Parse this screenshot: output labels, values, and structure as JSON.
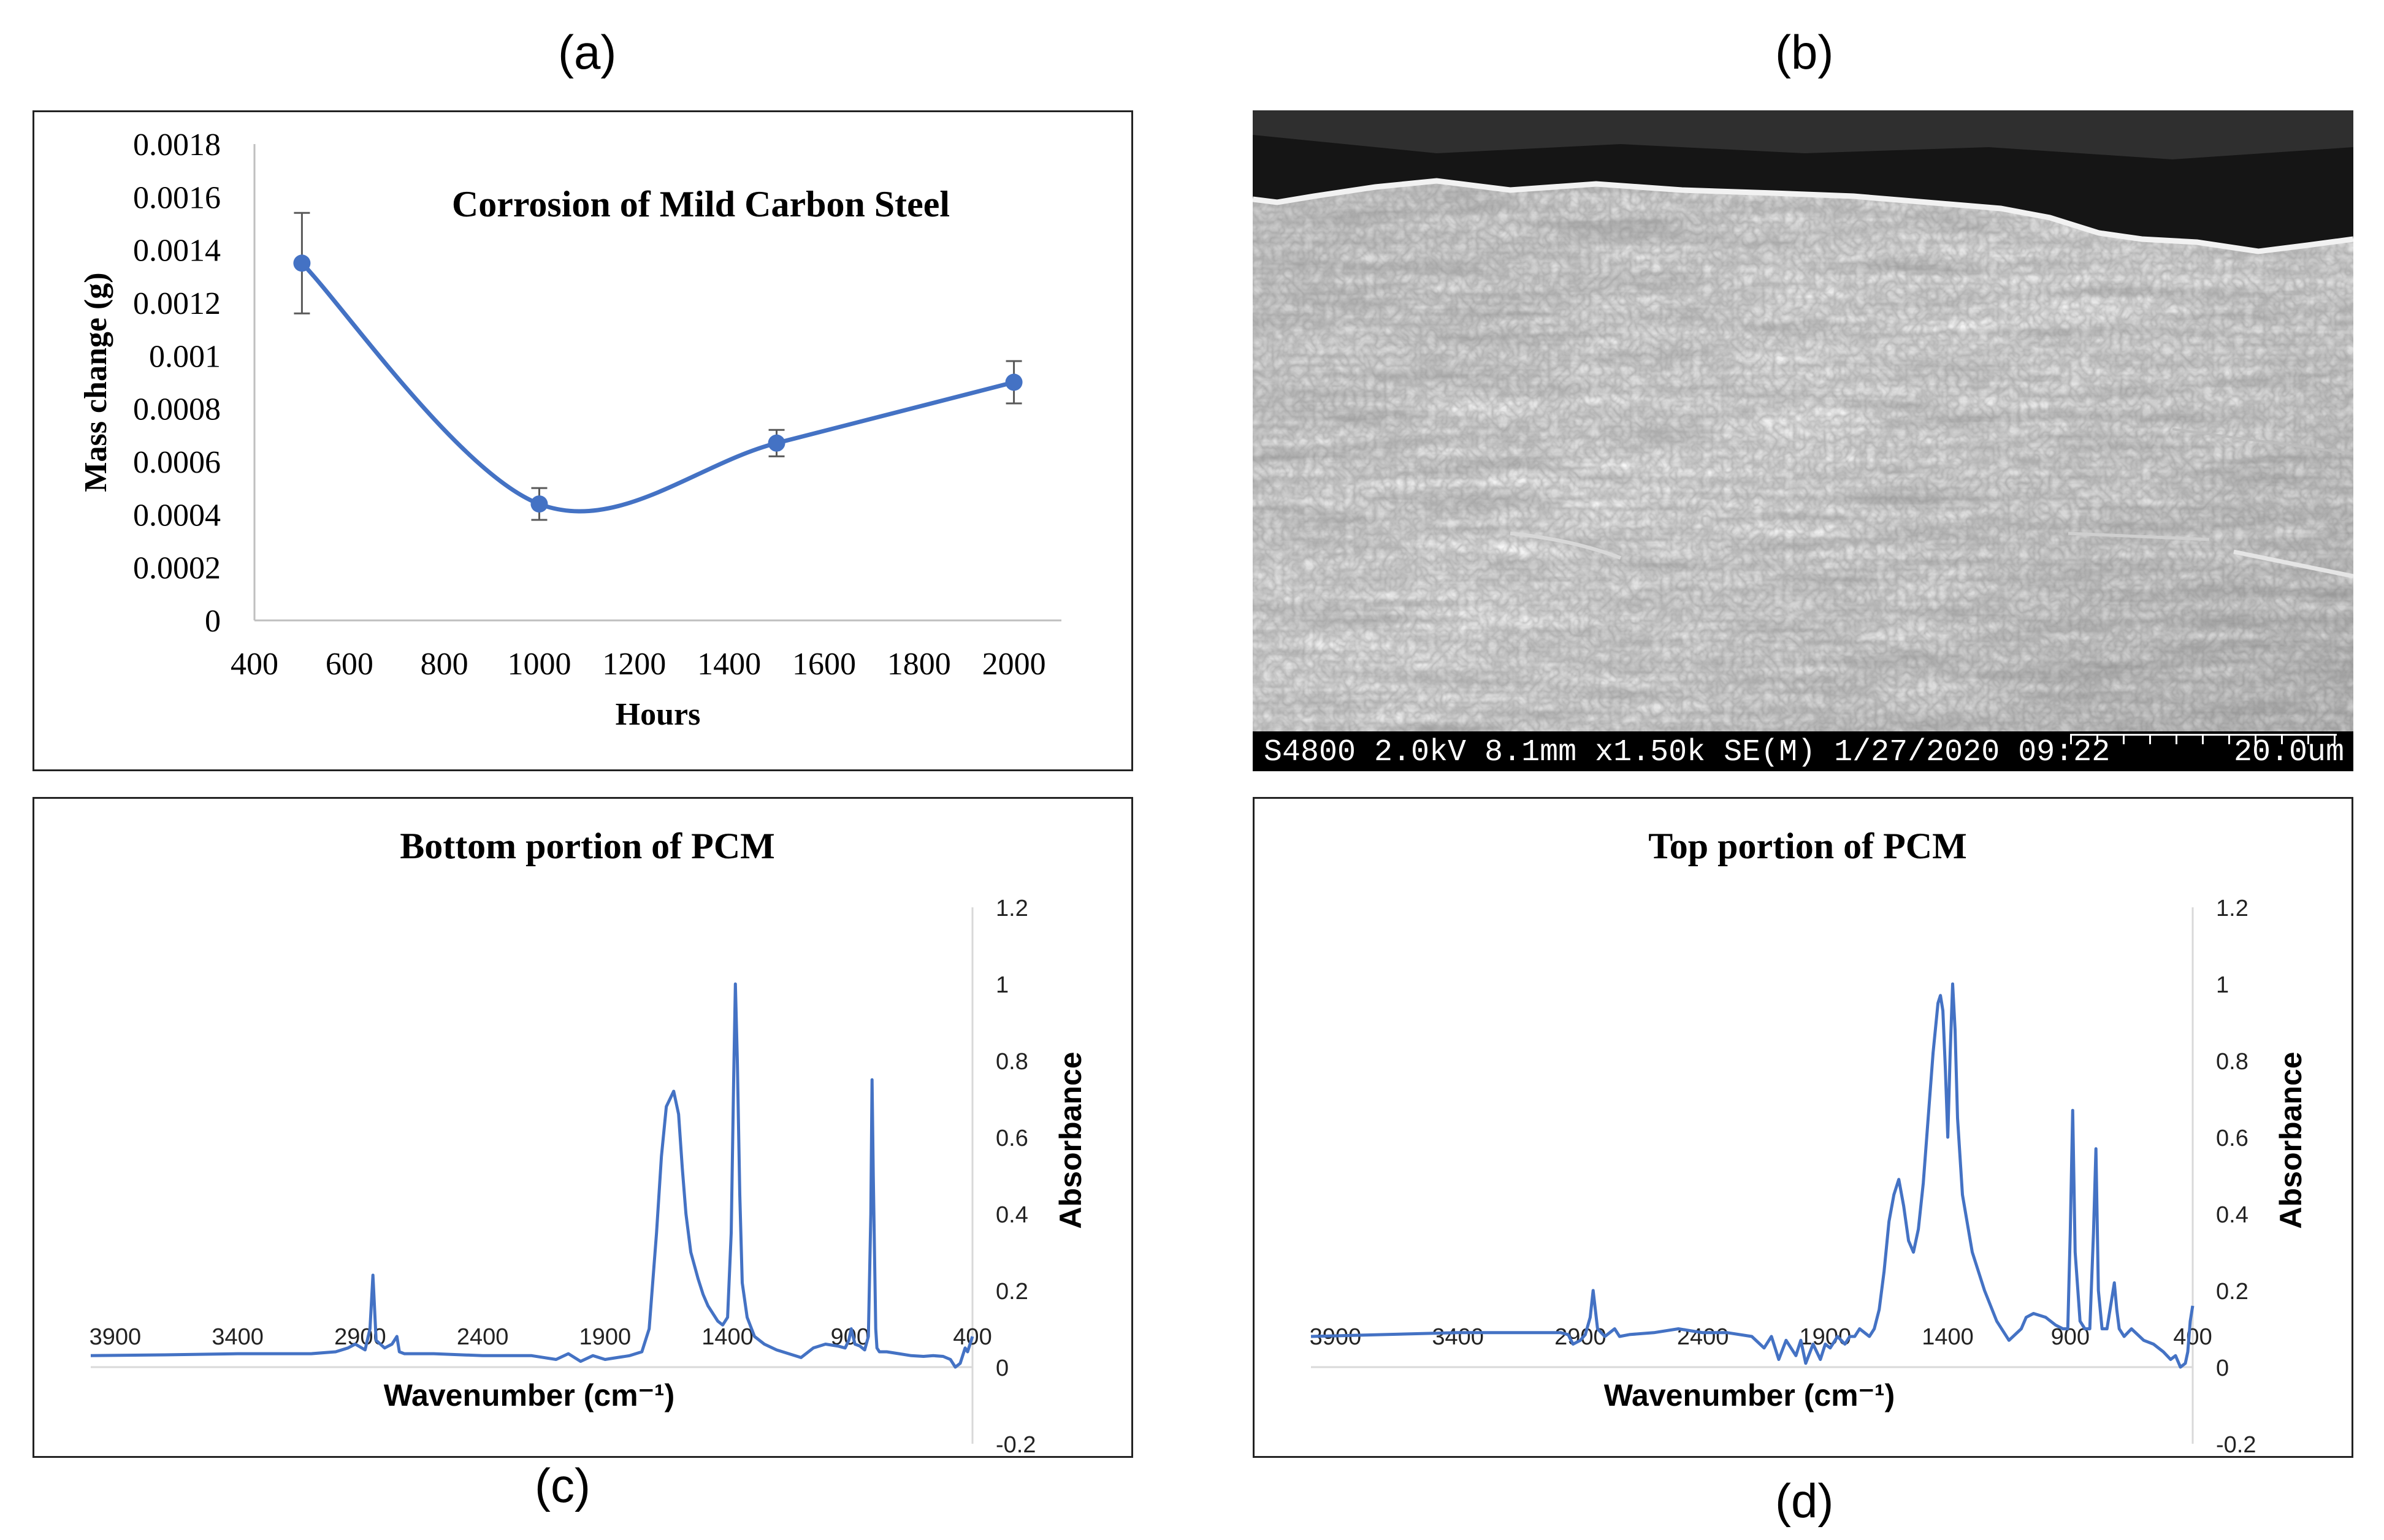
{
  "panel_labels": {
    "a": "(a)",
    "b": "(b)",
    "c": "(c)",
    "d": "(d)"
  },
  "sem": {
    "info": "S4800 2.0kV 8.1mm x1.50k SE(M) 1/27/2020 09:22",
    "scale": "20.0um"
  },
  "chart_data": [
    {
      "id": "a",
      "type": "line",
      "title": "Corrosion of Mild Carbon Steel",
      "xlabel": "Hours",
      "ylabel": "Mass change (g)",
      "x": [
        500,
        1000,
        1500,
        2000
      ],
      "y": [
        0.00135,
        0.00044,
        0.00067,
        0.0009
      ],
      "error": [
        0.00019,
        6e-05,
        5e-05,
        8e-05
      ],
      "xlim": [
        400,
        2100
      ],
      "ylim": [
        0,
        0.0018
      ],
      "xticks": [
        "400",
        "600",
        "800",
        "1000",
        "1200",
        "1400",
        "1600",
        "1800",
        "2000"
      ],
      "yticks": [
        "0",
        "0.0002",
        "0.0004",
        "0.0006",
        "0.0008",
        "0.001",
        "0.0012",
        "0.0014",
        "0.0016",
        "0.0018"
      ],
      "color": "#4472c4"
    },
    {
      "id": "c",
      "type": "line",
      "title": "Bottom portion of PCM",
      "xlabel": "Wavenumber (cm⁻¹)",
      "ylabel": "Absorbance",
      "xlim": [
        4000,
        400
      ],
      "ylim": [
        -0.2,
        1.2
      ],
      "xticks": [
        "3900",
        "3400",
        "2900",
        "2400",
        "1900",
        "1400",
        "900",
        "400"
      ],
      "yticks": [
        "-0.2",
        "0",
        "0.2",
        "0.4",
        "0.6",
        "0.8",
        "1",
        "1.2"
      ],
      "color": "#4472c4",
      "x": [
        4000,
        3700,
        3400,
        3100,
        3000,
        2950,
        2920,
        2880,
        2860,
        2848,
        2835,
        2800,
        2770,
        2750,
        2740,
        2720,
        2600,
        2400,
        2200,
        2100,
        2050,
        2000,
        1950,
        1900,
        1850,
        1800,
        1750,
        1720,
        1690,
        1670,
        1650,
        1620,
        1600,
        1585,
        1570,
        1550,
        1520,
        1500,
        1480,
        1460,
        1440,
        1420,
        1400,
        1385,
        1375,
        1368,
        1360,
        1350,
        1340,
        1320,
        1290,
        1250,
        1200,
        1150,
        1100,
        1050,
        1000,
        950,
        920,
        905,
        895,
        880,
        860,
        840,
        825,
        815,
        810,
        805,
        795,
        790,
        780,
        750,
        700,
        650,
        600,
        560,
        520,
        490,
        470,
        450,
        430,
        420,
        400
      ],
      "y": [
        0.03,
        0.032,
        0.035,
        0.035,
        0.04,
        0.05,
        0.06,
        0.045,
        0.1,
        0.24,
        0.07,
        0.05,
        0.06,
        0.08,
        0.04,
        0.035,
        0.035,
        0.03,
        0.03,
        0.02,
        0.035,
        0.015,
        0.03,
        0.02,
        0.025,
        0.03,
        0.04,
        0.1,
        0.35,
        0.55,
        0.68,
        0.72,
        0.66,
        0.52,
        0.4,
        0.3,
        0.23,
        0.19,
        0.16,
        0.14,
        0.12,
        0.11,
        0.13,
        0.35,
        0.75,
        1.0,
        0.8,
        0.45,
        0.22,
        0.13,
        0.08,
        0.06,
        0.045,
        0.035,
        0.025,
        0.05,
        0.06,
        0.055,
        0.05,
        0.07,
        0.1,
        0.06,
        0.055,
        0.045,
        0.08,
        0.4,
        0.75,
        0.5,
        0.1,
        0.05,
        0.04,
        0.04,
        0.035,
        0.03,
        0.028,
        0.03,
        0.028,
        0.02,
        0.0,
        0.01,
        0.05,
        0.04,
        0.08
      ]
    },
    {
      "id": "d",
      "type": "line",
      "title": "Top portion of PCM",
      "xlabel": "Wavenumber (cm⁻¹)",
      "ylabel": "Absorbance",
      "xlim": [
        4000,
        400
      ],
      "ylim": [
        -0.2,
        1.2
      ],
      "xticks": [
        "3900",
        "3400",
        "2900",
        "2400",
        "1900",
        "1400",
        "900",
        "400"
      ],
      "yticks": [
        "-0.2",
        "0",
        "0.2",
        "0.4",
        "0.6",
        "0.8",
        "1",
        "1.2"
      ],
      "color": "#4472c4",
      "x": [
        4000,
        3700,
        3400,
        3200,
        3050,
        2980,
        2950,
        2930,
        2900,
        2880,
        2860,
        2848,
        2830,
        2800,
        2760,
        2740,
        2700,
        2600,
        2500,
        2400,
        2300,
        2200,
        2150,
        2120,
        2090,
        2060,
        2020,
        2000,
        1980,
        1950,
        1920,
        1900,
        1880,
        1850,
        1820,
        1800,
        1780,
        1760,
        1720,
        1700,
        1680,
        1660,
        1640,
        1620,
        1600,
        1580,
        1560,
        1540,
        1520,
        1500,
        1480,
        1460,
        1440,
        1430,
        1420,
        1410,
        1400,
        1390,
        1380,
        1370,
        1360,
        1340,
        1300,
        1250,
        1200,
        1150,
        1100,
        1080,
        1050,
        1000,
        960,
        930,
        910,
        900,
        890,
        880,
        860,
        840,
        820,
        805,
        795,
        785,
        770,
        750,
        720,
        710,
        700,
        680,
        650,
        600,
        560,
        520,
        490,
        470,
        450,
        430,
        420,
        410,
        400
      ],
      "y": [
        0.08,
        0.085,
        0.09,
        0.09,
        0.09,
        0.09,
        0.085,
        0.06,
        0.07,
        0.085,
        0.13,
        0.2,
        0.1,
        0.08,
        0.1,
        0.08,
        0.085,
        0.09,
        0.1,
        0.09,
        0.09,
        0.08,
        0.05,
        0.08,
        0.02,
        0.07,
        0.03,
        0.07,
        0.01,
        0.06,
        0.02,
        0.06,
        0.05,
        0.08,
        0.06,
        0.08,
        0.08,
        0.1,
        0.08,
        0.1,
        0.15,
        0.25,
        0.38,
        0.45,
        0.49,
        0.42,
        0.33,
        0.3,
        0.36,
        0.48,
        0.65,
        0.82,
        0.95,
        0.97,
        0.93,
        0.78,
        0.6,
        0.82,
        1.0,
        0.88,
        0.65,
        0.45,
        0.3,
        0.2,
        0.12,
        0.07,
        0.1,
        0.13,
        0.14,
        0.13,
        0.11,
        0.1,
        0.1,
        0.35,
        0.67,
        0.3,
        0.12,
        0.1,
        0.1,
        0.35,
        0.57,
        0.2,
        0.1,
        0.1,
        0.22,
        0.15,
        0.1,
        0.08,
        0.1,
        0.07,
        0.06,
        0.04,
        0.02,
        0.03,
        0.0,
        0.01,
        0.04,
        0.12,
        0.16
      ]
    }
  ]
}
